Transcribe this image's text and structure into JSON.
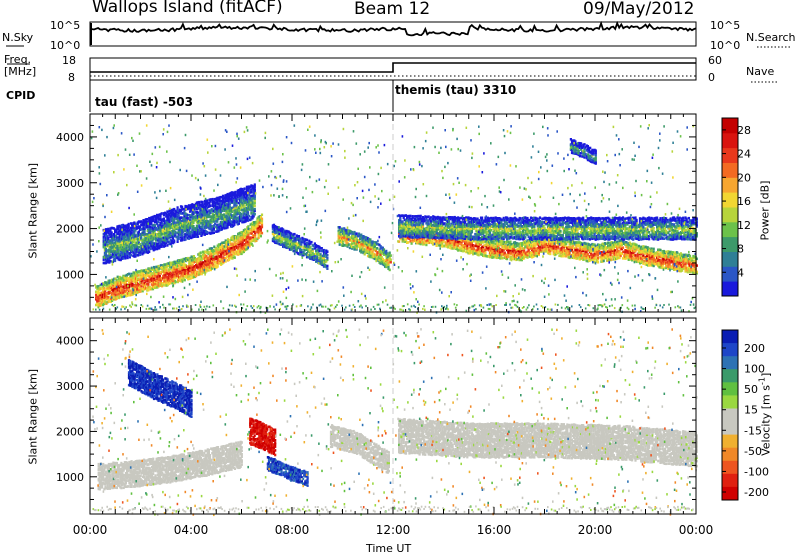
{
  "header": {
    "title": "Wallops Island (fitACF)",
    "beam": "Beam 12",
    "date": "09/May/2012"
  },
  "top_panels": {
    "nsky_label": "N.Sky",
    "nsky_ticks": [
      "10^5",
      "10^0"
    ],
    "nsearch_label": "N.Search",
    "nsearch_ticks": [
      "10^5",
      "10^0"
    ],
    "freq_label_line1": "Freq.",
    "freq_label_line2": "[MHz]",
    "freq_ticks": [
      "18",
      "8"
    ],
    "nave_label": "Nave",
    "nave_ticks": [
      "60",
      "0"
    ],
    "cpid_label": "CPID",
    "cpid_segments": [
      "tau (fast) -503",
      "themis (tau) 3310"
    ]
  },
  "colorbars": {
    "power": {
      "label": "Power [dB]",
      "ticks": [
        "28",
        "24",
        "20",
        "16",
        "12",
        "8",
        "4"
      ],
      "colors": [
        "#1a1adc",
        "#2a56c6",
        "#2f7f96",
        "#3d9a6a",
        "#6cc24a",
        "#b7d43b",
        "#f2d632",
        "#f7a630",
        "#f36a22",
        "#e8381c",
        "#d9140f",
        "#c40000"
      ]
    },
    "velocity": {
      "label": "Velocity [m s^-1]",
      "ticks": [
        "200",
        "100",
        "50",
        "15",
        "-15",
        "-50",
        "-100",
        "-200"
      ],
      "colors": [
        "#0a1eb4",
        "#1e46c8",
        "#2d72b4",
        "#3a9a6a",
        "#60c040",
        "#9ad840",
        "#c8c8c0",
        "#c8c8c0",
        "#f0b030",
        "#f08828",
        "#ee5520",
        "#e02010",
        "#d00000"
      ]
    }
  },
  "chart_data": [
    {
      "type": "heatmap",
      "name": "power",
      "ylabel": "Slant Range [km]",
      "xlabel": "Time UT",
      "xlim": [
        "00:00",
        "24:00"
      ],
      "ylim": [
        180,
        4500
      ],
      "y_ticks": [
        1000,
        2000,
        3000,
        4000
      ],
      "x_ticks": [
        "00:00",
        "04:00",
        "08:00",
        "12:00",
        "16:00",
        "20:00",
        "00:00"
      ],
      "cbar_range": [
        0,
        30
      ],
      "bands": [
        {
          "t": [
            0.2,
            1.0,
            2.0,
            3.0,
            4.0,
            5.0,
            6.0,
            6.8
          ],
          "r": [
            500,
            700,
            850,
            1000,
            1150,
            1400,
            1700,
            2100
          ],
          "v": 26,
          "w": 220
        },
        {
          "t": [
            0.5,
            2.0,
            3.5,
            5.0,
            6.5
          ],
          "r": [
            1600,
            1800,
            2100,
            2300,
            2600
          ],
          "v": 12,
          "w": 350
        },
        {
          "t": [
            7.2,
            8.0,
            8.8,
            9.4
          ],
          "r": [
            1900,
            1700,
            1500,
            1300
          ],
          "v": 14,
          "w": 200
        },
        {
          "t": [
            9.8,
            10.6,
            11.3,
            11.9
          ],
          "r": [
            1850,
            1700,
            1500,
            1250
          ],
          "v": 20,
          "w": 170
        },
        {
          "t": [
            12.2,
            13.0,
            14.0,
            15.0,
            16.0,
            17.0,
            18.0,
            19.0,
            20.0,
            21.0,
            22.0,
            23.0,
            24.0
          ],
          "r": [
            1900,
            1850,
            1800,
            1650,
            1550,
            1500,
            1650,
            1550,
            1450,
            1550,
            1400,
            1300,
            1200
          ],
          "v": 25,
          "w": 200
        },
        {
          "t": [
            12.2,
            15.0,
            18.0,
            21.0,
            24.0
          ],
          "r": [
            2050,
            2000,
            2000,
            2000,
            2000
          ],
          "v": 14,
          "w": 220
        },
        {
          "t": [
            19.0,
            19.5,
            20.0
          ],
          "r": [
            3800,
            3700,
            3550
          ],
          "v": 10,
          "w": 150
        }
      ]
    },
    {
      "type": "heatmap",
      "name": "velocity",
      "ylabel": "Slant Range [km]",
      "xlabel": "Time UT",
      "xlim": [
        "00:00",
        "24:00"
      ],
      "ylim": [
        180,
        4500
      ],
      "y_ticks": [
        1000,
        2000,
        3000,
        4000
      ],
      "x_ticks": [
        "00:00",
        "04:00",
        "08:00",
        "12:00",
        "16:00",
        "20:00",
        "00:00"
      ],
      "cbar_range": [
        -250,
        250
      ],
      "bands": [
        {
          "t": [
            0.3,
            1.5,
            3.0,
            4.5,
            6.0
          ],
          "r": [
            1000,
            1050,
            1150,
            1300,
            1500
          ],
          "v": -20,
          "w": 250
        },
        {
          "t": [
            1.5,
            2.5,
            3.5,
            4.0
          ],
          "r": [
            3300,
            3000,
            2750,
            2600
          ],
          "v": 220,
          "w": 250
        },
        {
          "t": [
            6.3,
            6.8,
            7.3
          ],
          "r": [
            2000,
            1900,
            1750
          ],
          "v": -220,
          "w": 250
        },
        {
          "t": [
            7.0,
            7.8,
            8.6
          ],
          "r": [
            1300,
            1100,
            950
          ],
          "v": 200,
          "w": 150
        },
        {
          "t": [
            9.5,
            10.5,
            11.8
          ],
          "r": [
            1900,
            1750,
            1300
          ],
          "v": 0,
          "w": 220
        },
        {
          "t": [
            12.2,
            15.0,
            18.0,
            21.0,
            24.0
          ],
          "r": [
            1900,
            1800,
            1800,
            1750,
            1600
          ],
          "v": 0,
          "w": 350
        }
      ]
    }
  ]
}
